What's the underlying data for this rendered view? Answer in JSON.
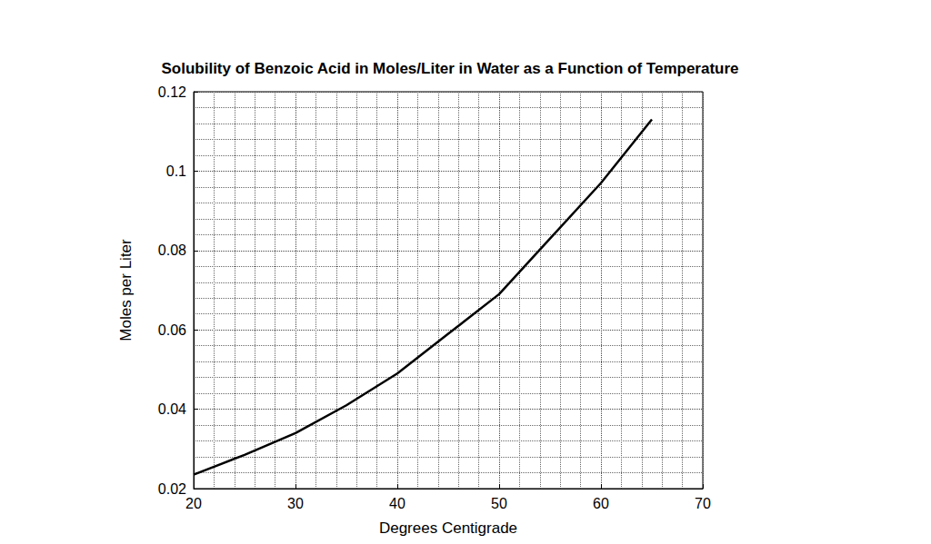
{
  "chart_data": {
    "type": "line",
    "title": "Solubility of Benzoic Acid in Moles/Liter in Water as a Function of Temperature",
    "x_label": "Degrees Centigrade",
    "y_label": "Moles per Liter",
    "x": [
      20,
      25,
      30,
      35,
      40,
      45,
      50,
      55,
      60,
      65
    ],
    "values": [
      0.0235,
      0.0285,
      0.034,
      0.041,
      0.049,
      0.059,
      0.069,
      0.083,
      0.097,
      0.113
    ],
    "color": "#000000",
    "xlim": [
      20,
      70
    ],
    "xticks": [
      20,
      30,
      40,
      50,
      60,
      70
    ],
    "ylim": [
      0.02,
      0.12
    ],
    "yticks": [
      0.02,
      0.04,
      0.06,
      0.08,
      0.1,
      0.12
    ],
    "grid": true
  }
}
